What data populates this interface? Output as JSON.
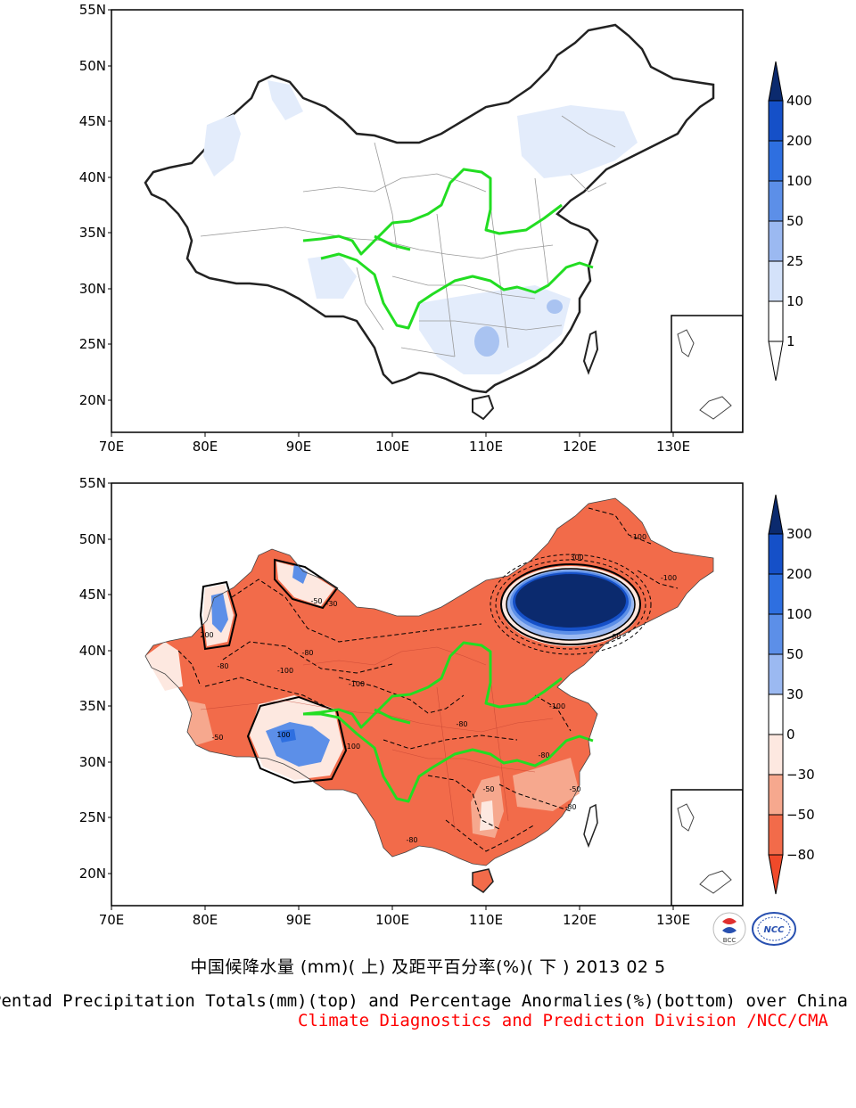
{
  "maps": {
    "top": {
      "lat_labels": [
        "55N",
        "50N",
        "45N",
        "40N",
        "35N",
        "30N",
        "25N",
        "20N"
      ],
      "lon_labels": [
        "70E",
        "80E",
        "90E",
        "100E",
        "110E",
        "120E",
        "130E"
      ],
      "colorbar": {
        "labels": [
          "400",
          "200",
          "100",
          "50",
          "25",
          "10",
          "1"
        ],
        "colors": [
          "#0b2a6e",
          "#1550c8",
          "#2e6fe0",
          "#5c8fe8",
          "#9bb9f1",
          "#d4e2fa",
          "#ffffff"
        ]
      }
    },
    "bottom": {
      "lat_labels": [
        "55N",
        "50N",
        "45N",
        "40N",
        "35N",
        "30N",
        "25N",
        "20N"
      ],
      "lon_labels": [
        "70E",
        "80E",
        "90E",
        "100E",
        "110E",
        "120E",
        "130E"
      ],
      "colorbar": {
        "labels": [
          "300",
          "200",
          "100",
          "50",
          "30",
          "0",
          "−30",
          "−50",
          "−80"
        ],
        "colors": [
          "#0b2a6e",
          "#1550c8",
          "#2e6fe0",
          "#5c8fe8",
          "#9bb9f1",
          "#ffffff",
          "#fde8e0",
          "#f6a88e",
          "#f26b4a",
          "#f04a2a"
        ]
      },
      "contour_labels": [
        "-100",
        "-80",
        "-50",
        "-30",
        "100",
        "200",
        "300"
      ]
    }
  },
  "captions": {
    "chinese": "中国候降水量 (mm)( 上) 及距平百分率(%)( 下 ) 2013 02 5",
    "english": "Pentad Precipitation Totals(mm)(top) and Percentage Anormalies(%)(bottom) over China",
    "org": "Climate Diagnostics and Prediction Division /NCC/CMA"
  },
  "logos": {
    "left": "BCC",
    "right": "NCC"
  }
}
